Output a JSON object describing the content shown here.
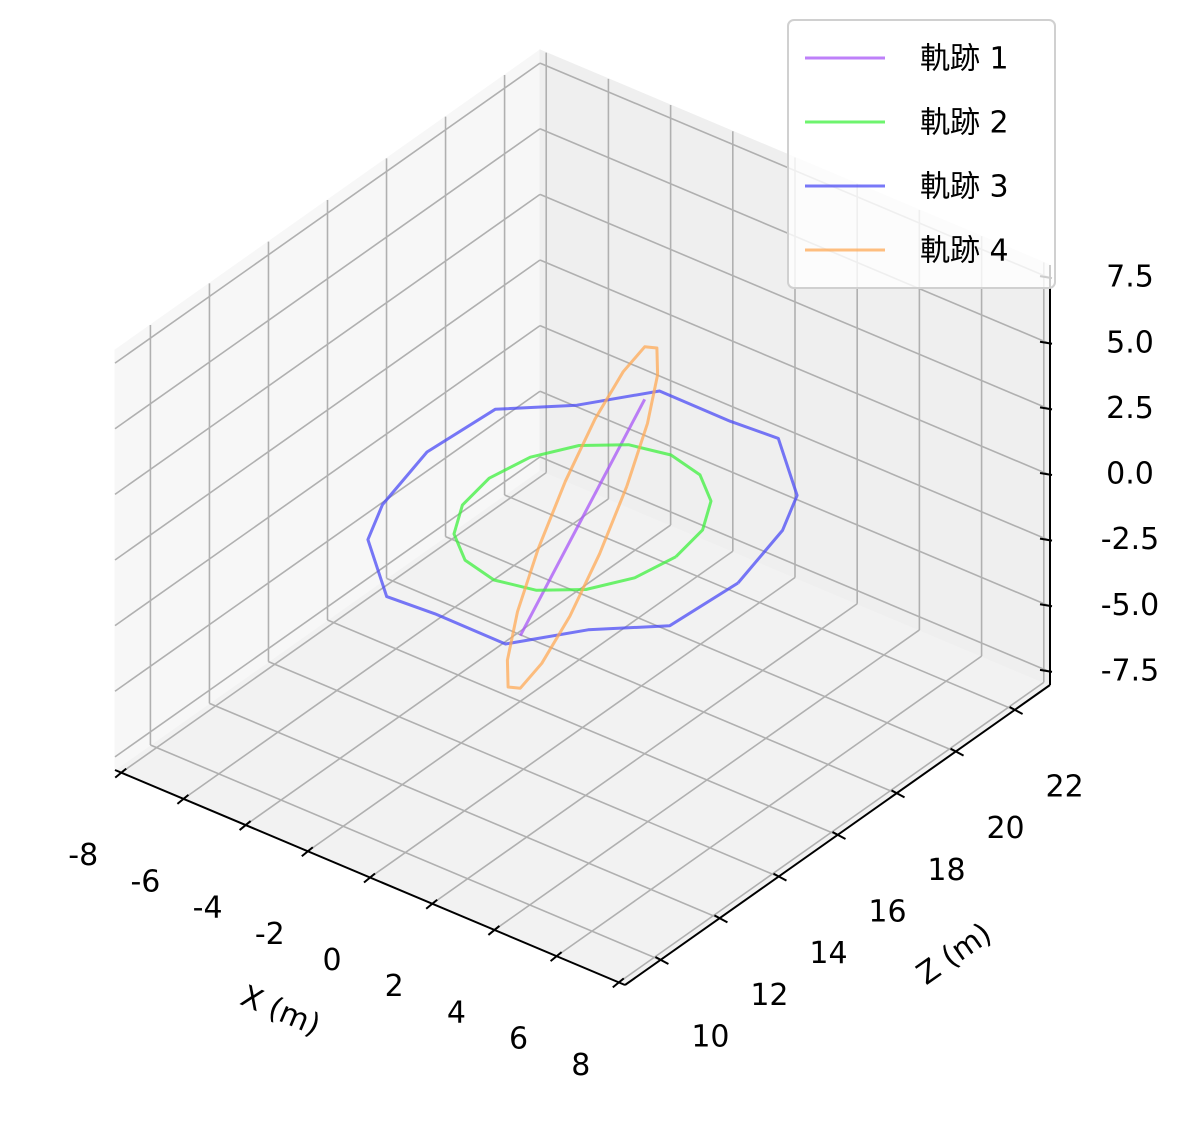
{
  "chart_data": {
    "type": "line3d",
    "xlabel": "X (m)",
    "ylabel": "Z (m)",
    "xlim": [
      -8.2,
      8.2
    ],
    "xticks": [
      -8,
      -6,
      -4,
      -2,
      0,
      2,
      4,
      6,
      8
    ],
    "ylim": [
      8.8,
      23.2
    ],
    "yticks": [
      10,
      12,
      14,
      16,
      18,
      20,
      22
    ],
    "zlim": [
      -8,
      8
    ],
    "zticks": [
      -7.5,
      {
        "value": -5,
        "label": "-5.0"
      },
      -2.5,
      {
        "value": 0,
        "label": "0.0"
      },
      2.5,
      {
        "value": 5,
        "label": "5.0"
      },
      7.5
    ],
    "grid": true,
    "legend": "upper right",
    "series": [
      {
        "name": "軌跡 1",
        "color": "#a855f7",
        "x": [
          -2,
          -1,
          0,
          1,
          2
        ],
        "y": [
          16,
          16,
          16,
          16,
          16
        ],
        "z": [
          -5.5,
          -2.75,
          0,
          2.75,
          5.5
        ]
      },
      {
        "name": "軌跡 2",
        "color": "#3df03d",
        "x": [
          3,
          2.77,
          2.12,
          1.15,
          0,
          -1.15,
          -2.12,
          -2.77,
          -3,
          -2.77,
          -2.12,
          -1.15,
          0,
          1.15,
          2.12,
          2.77,
          3
        ],
        "y": [
          16,
          17.15,
          18.12,
          18.77,
          19,
          18.77,
          18.12,
          17.15,
          16,
          14.85,
          13.88,
          13.23,
          13,
          13.23,
          13.88,
          14.85,
          16
        ],
        "z": [
          0,
          0,
          0,
          0,
          0,
          0,
          0,
          0,
          0,
          0,
          0,
          0,
          0,
          0,
          0,
          0,
          0
        ]
      },
      {
        "name": "軌跡 3",
        "color": "#4b4bf5",
        "x": [
          5,
          4.62,
          3.54,
          1.91,
          0,
          -1.91,
          -3.54,
          -4.62,
          -5,
          -4.62,
          -3.54,
          -1.91,
          0,
          1.91,
          3.54,
          4.62,
          5
        ],
        "y": [
          16,
          17.91,
          19.54,
          20.62,
          21,
          20.62,
          19.54,
          17.91,
          16,
          14.09,
          12.46,
          11.38,
          11,
          11.38,
          12.46,
          14.09,
          16
        ],
        "z": [
          0,
          0.3,
          -0.2,
          0.3,
          -0.3,
          0.2,
          -0.3,
          0.3,
          0,
          -0.3,
          0.2,
          -0.3,
          0.3,
          -0.2,
          0.3,
          -0.3,
          0
        ]
      },
      {
        "name": "軌跡 4",
        "color": "#ffaa55",
        "x": [
          0,
          0.77,
          1.41,
          1.85,
          2,
          1.85,
          1.41,
          0.77,
          0,
          -0.77,
          -1.41,
          -1.85,
          -2,
          -1.85,
          -1.41,
          -0.77,
          0
        ],
        "y": [
          17.5,
          17.39,
          17.06,
          16.57,
          16,
          15.43,
          14.94,
          14.61,
          14.5,
          14.61,
          14.94,
          15.43,
          16,
          16.57,
          17.06,
          17.39,
          17.5
        ],
        "z": [
          0,
          2.87,
          5.3,
          6.93,
          7.5,
          6.93,
          5.3,
          2.87,
          0,
          -2.87,
          -5.3,
          -6.93,
          -7.5,
          -6.93,
          -5.3,
          -2.87,
          0
        ]
      }
    ]
  }
}
